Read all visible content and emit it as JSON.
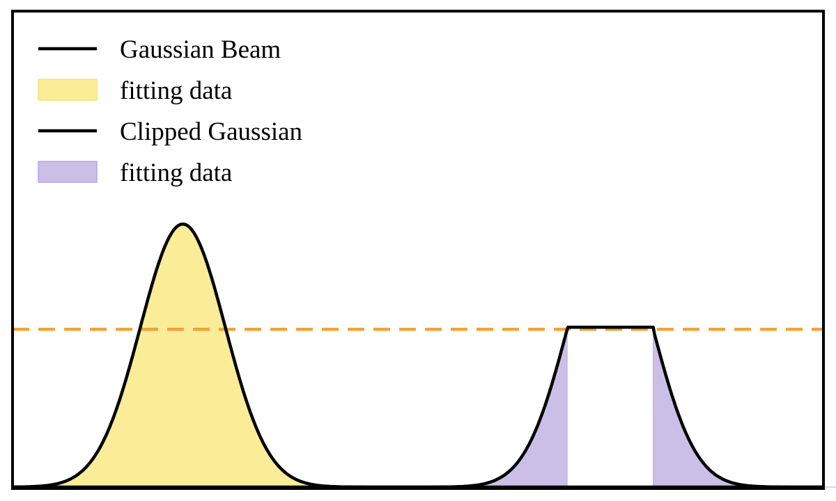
{
  "chart_data": {
    "type": "area",
    "title": "",
    "xlabel": "",
    "ylabel": "",
    "xlim": [
      0,
      10
    ],
    "ylim": [
      0,
      1.81
    ],
    "grid": false,
    "legend_placement": "top-left",
    "threshold": 0.6,
    "series": [
      {
        "name": "Gaussian Beam",
        "kind": "line",
        "center": 2.1,
        "sigma": 0.525,
        "amplitude": 1.0,
        "color": "#000000"
      },
      {
        "name": "fitting data",
        "kind": "fill",
        "of": "Gaussian Beam",
        "region": "full",
        "color": "#fbec98"
      },
      {
        "name": "Clipped Gaussian",
        "kind": "line",
        "center": 7.37,
        "sigma": 0.525,
        "amplitude": 1.0,
        "clip": 0.6,
        "color": "#000000"
      },
      {
        "name": "fitting data",
        "kind": "fill",
        "of": "Clipped Gaussian",
        "region": "below threshold only",
        "color": "#cbbfe8"
      }
    ],
    "threshold_line": {
      "value": 0.6,
      "style": "dashed",
      "color": "#f0a43a"
    },
    "legend": [
      {
        "label": "Gaussian Beam",
        "type": "line",
        "color": "#000000"
      },
      {
        "label": "fitting data",
        "type": "patch",
        "color": "#fbec98",
        "edge": "#f7e27a"
      },
      {
        "label": "Clipped Gaussian",
        "type": "line",
        "color": "#000000"
      },
      {
        "label": "fitting data",
        "type": "patch",
        "color": "#cbbfe8",
        "edge": "#b7a6e6"
      }
    ]
  }
}
